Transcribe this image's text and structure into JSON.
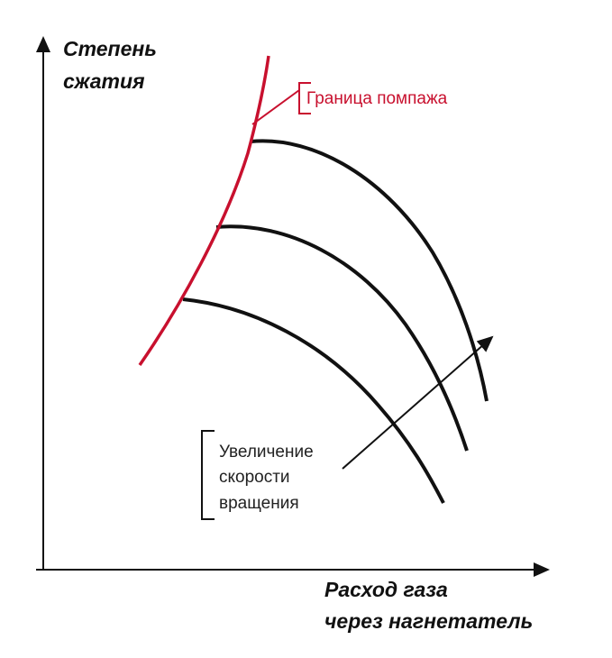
{
  "axes": {
    "y_label": [
      "Степень",
      "сжатия"
    ],
    "x_label": [
      "Расход газа",
      "через нагнетатель"
    ]
  },
  "annotations": {
    "surge_line": "Граница помпажа",
    "speed_increase": [
      "Увеличение",
      "скорости",
      "вращения"
    ]
  }
}
